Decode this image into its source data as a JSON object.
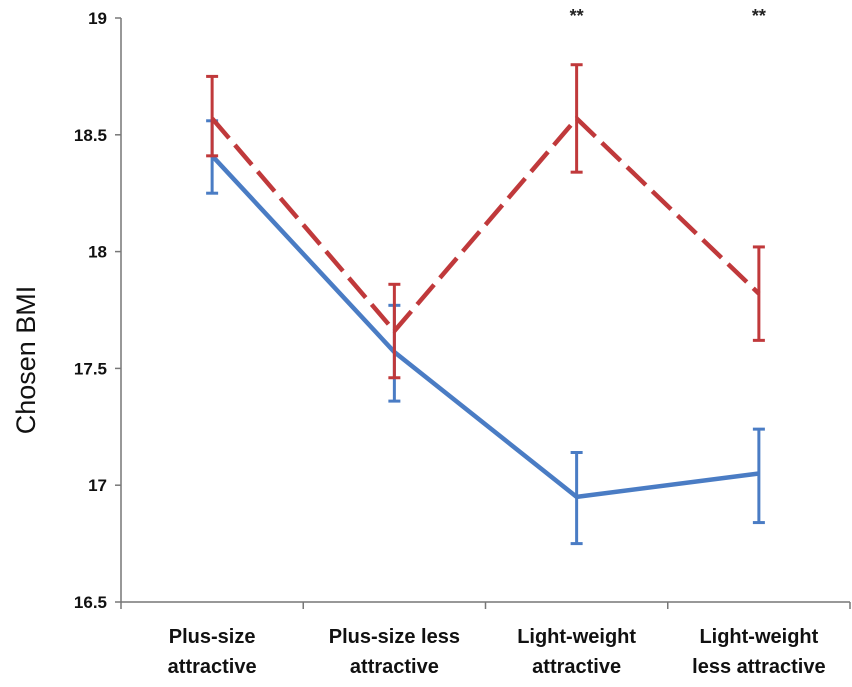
{
  "chart_data": {
    "type": "line",
    "title": "",
    "xlabel": "",
    "ylabel": "Chosen BMI",
    "ylim": [
      16.5,
      19
    ],
    "yticks": [
      "16.5",
      "17",
      "17.5",
      "18",
      "18.5",
      "19"
    ],
    "categories": [
      [
        "Plus-size",
        "attractive"
      ],
      [
        "Plus-size less",
        "attractive"
      ],
      [
        "Light-weight",
        "attractive"
      ],
      [
        "Light-weight",
        "less attractive"
      ]
    ],
    "series": [
      {
        "color": "#c0393b",
        "dash": "dashed",
        "values": [
          18.57,
          17.66,
          18.57,
          17.82
        ],
        "err_low": [
          18.41,
          17.46,
          18.34,
          17.62
        ],
        "err_high": [
          18.75,
          17.86,
          18.8,
          18.02
        ]
      },
      {
        "color": "#4a7cc4",
        "dash": "solid",
        "values": [
          18.41,
          17.57,
          16.95,
          17.05
        ],
        "err_low": [
          18.25,
          17.36,
          16.75,
          16.84
        ],
        "err_high": [
          18.56,
          17.77,
          17.14,
          17.24
        ]
      }
    ],
    "annotations": [
      {
        "category_index": 2,
        "text": "**"
      },
      {
        "category_index": 3,
        "text": "**"
      }
    ],
    "grid": false,
    "legend": "none"
  }
}
